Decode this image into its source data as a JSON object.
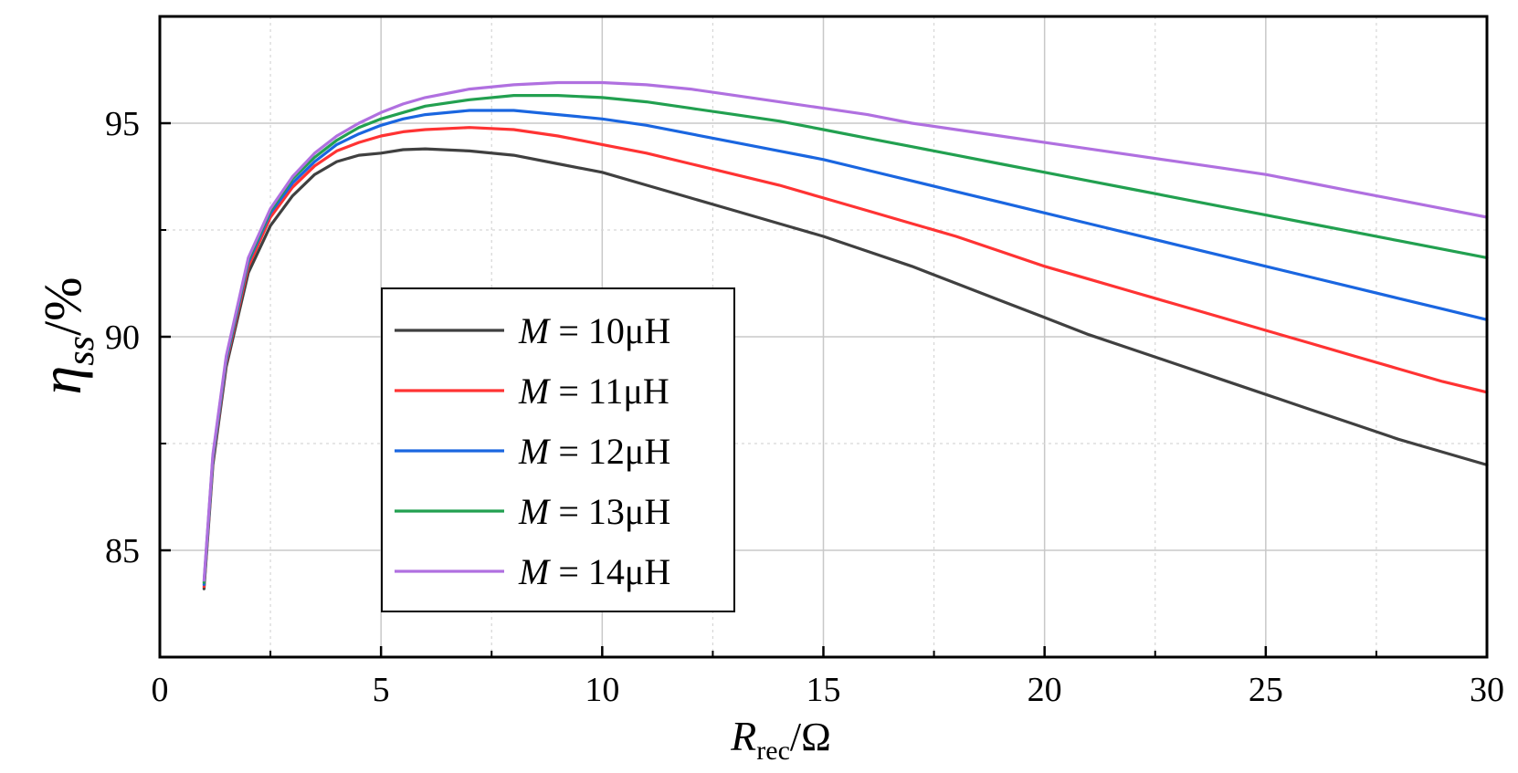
{
  "chart_data": {
    "type": "line",
    "title": "",
    "xlabel": {
      "main": "R",
      "sub": "rec",
      "unit": "/Ω"
    },
    "ylabel": {
      "main": "η",
      "sub": "ss",
      "unit": "/%"
    },
    "xlim": [
      0,
      30
    ],
    "ylim": [
      82.5,
      97.5
    ],
    "x_ticks": [
      0,
      5,
      10,
      15,
      20,
      25,
      30
    ],
    "y_ticks": [
      85,
      90,
      95
    ],
    "grid": true,
    "legend_position": "lower-left",
    "series": [
      {
        "name": "M = 10μH",
        "label_var": "M",
        "label_rest": " = 10μH",
        "color": "#404040",
        "x": [
          1,
          1.2,
          1.5,
          2,
          2.5,
          3,
          3.5,
          4,
          4.5,
          5,
          5.5,
          6,
          7,
          8,
          9,
          10,
          11,
          12,
          13,
          14,
          15,
          16,
          17,
          18,
          19,
          20,
          21,
          22,
          23,
          24,
          25,
          26,
          27,
          28,
          29,
          30
        ],
        "y": [
          84.1,
          87.0,
          89.3,
          91.5,
          92.6,
          93.3,
          93.8,
          94.1,
          94.25,
          94.3,
          94.38,
          94.4,
          94.35,
          94.25,
          94.05,
          93.85,
          93.55,
          93.25,
          92.95,
          92.65,
          92.35,
          92.0,
          91.65,
          91.25,
          90.85,
          90.45,
          90.05,
          89.7,
          89.35,
          89.0,
          88.65,
          88.3,
          87.95,
          87.6,
          87.3,
          87.0
        ]
      },
      {
        "name": "M = 11μH",
        "label_var": "M",
        "label_rest": " = 11μH",
        "color": "#ff3333",
        "x": [
          1,
          1.2,
          1.5,
          2,
          2.5,
          3,
          3.5,
          4,
          4.5,
          5,
          5.5,
          6,
          7,
          8,
          9,
          10,
          11,
          12,
          13,
          14,
          15,
          16,
          17,
          18,
          19,
          20,
          21,
          22,
          23,
          24,
          25,
          26,
          27,
          28,
          29,
          30
        ],
        "y": [
          84.15,
          87.1,
          89.4,
          91.65,
          92.8,
          93.5,
          94.0,
          94.35,
          94.55,
          94.7,
          94.8,
          94.85,
          94.9,
          94.85,
          94.7,
          94.5,
          94.3,
          94.05,
          93.8,
          93.55,
          93.25,
          92.95,
          92.65,
          92.35,
          92.0,
          91.65,
          91.35,
          91.05,
          90.75,
          90.45,
          90.15,
          89.85,
          89.55,
          89.25,
          88.95,
          88.7
        ]
      },
      {
        "name": "M = 12μH",
        "label_var": "M",
        "label_rest": " = 12μH",
        "color": "#1a66e0",
        "x": [
          1,
          1.2,
          1.5,
          2,
          2.5,
          3,
          3.5,
          4,
          4.5,
          5,
          5.5,
          6,
          7,
          8,
          9,
          10,
          11,
          12,
          13,
          14,
          15,
          16,
          17,
          18,
          19,
          20,
          21,
          22,
          23,
          24,
          25,
          26,
          27,
          28,
          29,
          30
        ],
        "y": [
          84.2,
          87.15,
          89.45,
          91.75,
          92.9,
          93.6,
          94.1,
          94.5,
          94.75,
          94.95,
          95.1,
          95.2,
          95.3,
          95.3,
          95.2,
          95.1,
          94.95,
          94.75,
          94.55,
          94.35,
          94.15,
          93.9,
          93.65,
          93.4,
          93.15,
          92.9,
          92.65,
          92.4,
          92.15,
          91.9,
          91.65,
          91.4,
          91.15,
          90.9,
          90.65,
          90.4
        ]
      },
      {
        "name": "M = 13μH",
        "label_var": "M",
        "label_rest": " = 13μH",
        "color": "#22a050",
        "x": [
          1,
          1.2,
          1.5,
          2,
          2.5,
          3,
          3.5,
          4,
          4.5,
          5,
          5.5,
          6,
          7,
          8,
          9,
          10,
          11,
          12,
          13,
          14,
          15,
          16,
          17,
          18,
          19,
          20,
          21,
          22,
          23,
          24,
          25,
          26,
          27,
          28,
          29,
          30
        ],
        "y": [
          84.25,
          87.2,
          89.5,
          91.8,
          92.95,
          93.7,
          94.2,
          94.6,
          94.9,
          95.1,
          95.25,
          95.4,
          95.55,
          95.65,
          95.65,
          95.6,
          95.5,
          95.35,
          95.2,
          95.05,
          94.85,
          94.65,
          94.45,
          94.25,
          94.05,
          93.85,
          93.65,
          93.45,
          93.25,
          93.05,
          92.85,
          92.65,
          92.45,
          92.25,
          92.05,
          91.85
        ]
      },
      {
        "name": "M = 14μH",
        "label_var": "M",
        "label_rest": " = 14μH",
        "color": "#b070e0",
        "x": [
          1,
          1.2,
          1.5,
          2,
          2.5,
          3,
          3.5,
          4,
          4.5,
          5,
          5.5,
          6,
          7,
          8,
          9,
          10,
          11,
          12,
          13,
          14,
          15,
          16,
          17,
          18,
          19,
          20,
          21,
          22,
          23,
          24,
          25,
          26,
          27,
          28,
          29,
          30
        ],
        "y": [
          84.3,
          87.25,
          89.55,
          91.85,
          93.0,
          93.75,
          94.3,
          94.7,
          95.0,
          95.25,
          95.45,
          95.6,
          95.8,
          95.9,
          95.95,
          95.95,
          95.9,
          95.8,
          95.65,
          95.5,
          95.35,
          95.2,
          95.0,
          94.85,
          94.7,
          94.55,
          94.4,
          94.25,
          94.1,
          93.95,
          93.8,
          93.6,
          93.4,
          93.2,
          93.0,
          92.8
        ]
      }
    ]
  }
}
